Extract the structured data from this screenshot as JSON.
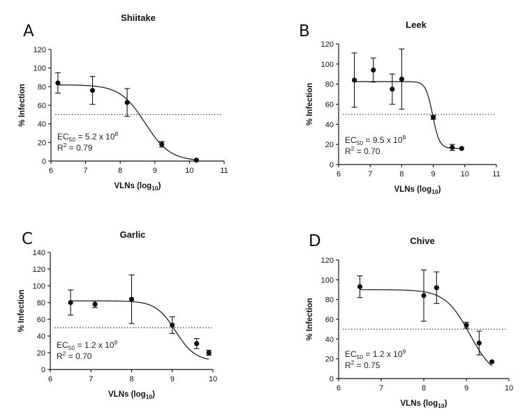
{
  "chart_data": [
    {
      "type": "scatter",
      "panel": "A",
      "title": "Shiitake",
      "xlabel": "VLNs (log",
      "xlabel_sub": "10",
      "xlabel_end": ")",
      "ylabel": "% Infection",
      "xlim": [
        6,
        11
      ],
      "ylim": [
        0,
        120
      ],
      "xticks": [
        6,
        7,
        8,
        9,
        10,
        11
      ],
      "yticks": [
        0,
        20,
        40,
        60,
        80,
        100,
        120
      ],
      "reference_line": 50,
      "points": [
        {
          "x": 6.2,
          "y": 84,
          "err": 11
        },
        {
          "x": 7.2,
          "y": 76,
          "err": 15
        },
        {
          "x": 8.2,
          "y": 63,
          "err": 15
        },
        {
          "x": 9.2,
          "y": 18,
          "err": 3
        },
        {
          "x": 10.2,
          "y": 1,
          "err": 0
        }
      ],
      "fit": {
        "top": 82,
        "bottom": 0,
        "log_ec50": 8.716,
        "hill": 1.2
      },
      "ec50_label": "EC",
      "ec50_sub": "50",
      "ec50_value": " = 5.2 x 10",
      "ec50_exp": "8",
      "r2_label": "R",
      "r2_sup": "2",
      "r2_value": " = 0.79"
    },
    {
      "type": "scatter",
      "panel": "B",
      "title": "Leek",
      "xlabel": "VLNs (log",
      "xlabel_sub": "10",
      "xlabel_end": ")",
      "ylabel": "% Infection",
      "xlim": [
        6,
        11
      ],
      "ylim": [
        0,
        120
      ],
      "xticks": [
        6,
        7,
        8,
        9,
        10,
        11
      ],
      "yticks": [
        0,
        20,
        40,
        60,
        80,
        100,
        120
      ],
      "reference_line": 50,
      "points": [
        {
          "x": 6.5,
          "y": 84,
          "err": 27
        },
        {
          "x": 7.1,
          "y": 94,
          "err": 12
        },
        {
          "x": 7.7,
          "y": 75,
          "err": 15
        },
        {
          "x": 8.0,
          "y": 85,
          "err": 30
        },
        {
          "x": 9.0,
          "y": 47,
          "err": 2
        },
        {
          "x": 9.6,
          "y": 17,
          "err": 3
        },
        {
          "x": 9.9,
          "y": 16,
          "err": 0
        }
      ],
      "fit": {
        "top": 82.5,
        "bottom": 16,
        "log_ec50": 8.979,
        "hill": 4.0
      },
      "ec50_label": "EC",
      "ec50_sub": "50",
      "ec50_value": " = 9.5 x 10",
      "ec50_exp": "8",
      "r2_label": "R",
      "r2_sup": "2",
      "r2_value": " = 0.70"
    },
    {
      "type": "scatter",
      "panel": "C",
      "title": "Garlic",
      "xlabel": "VLNs (log",
      "xlabel_sub": "10",
      "xlabel_end": ")",
      "ylabel": "% Infection",
      "xlim": [
        6,
        10
      ],
      "ylim": [
        0,
        140
      ],
      "xticks": [
        6,
        7,
        8,
        9,
        10
      ],
      "yticks": [
        0,
        20,
        40,
        60,
        80,
        100,
        120,
        140
      ],
      "reference_line": 50,
      "points": [
        {
          "x": 6.5,
          "y": 80,
          "err": 15
        },
        {
          "x": 7.1,
          "y": 78,
          "err": 4
        },
        {
          "x": 8.0,
          "y": 84,
          "err": 29
        },
        {
          "x": 9.0,
          "y": 53,
          "err": 10
        },
        {
          "x": 9.6,
          "y": 31,
          "err": 6
        },
        {
          "x": 9.9,
          "y": 20,
          "err": 3
        }
      ],
      "fit": {
        "top": 82,
        "bottom": 10,
        "log_ec50": 9.079,
        "hill": 1.8
      },
      "ec50_label": "EC",
      "ec50_sub": "50",
      "ec50_value": " = 1.2 x 10",
      "ec50_exp": "9",
      "r2_label": "R",
      "r2_sup": "2",
      "r2_value": " = 0.70"
    },
    {
      "type": "scatter",
      "panel": "D",
      "title": "Chive",
      "xlabel": "VLNs (log",
      "xlabel_sub": "10",
      "xlabel_end": ")",
      "ylabel": "% Infection",
      "xlim": [
        6,
        10
      ],
      "ylim": [
        0,
        120
      ],
      "xticks": [
        6,
        7,
        8,
        9,
        10
      ],
      "yticks": [
        0,
        20,
        40,
        60,
        80,
        100,
        120
      ],
      "reference_line": 50,
      "points": [
        {
          "x": 6.5,
          "y": 93,
          "err": 11
        },
        {
          "x": 8.0,
          "y": 84,
          "err": 26
        },
        {
          "x": 8.3,
          "y": 92,
          "err": 16
        },
        {
          "x": 9.0,
          "y": 54,
          "err": 3
        },
        {
          "x": 9.3,
          "y": 36,
          "err": 12
        },
        {
          "x": 9.6,
          "y": 17,
          "err": 0
        }
      ],
      "fit": {
        "top": 90,
        "bottom": 0,
        "log_ec50": 9.079,
        "hill": 1.5
      },
      "ec50_label": "EC",
      "ec50_sub": "50",
      "ec50_value": " = 1.2 x 10",
      "ec50_exp": "9",
      "r2_label": "R",
      "r2_sup": "2",
      "r2_value": " = 0.75"
    }
  ]
}
